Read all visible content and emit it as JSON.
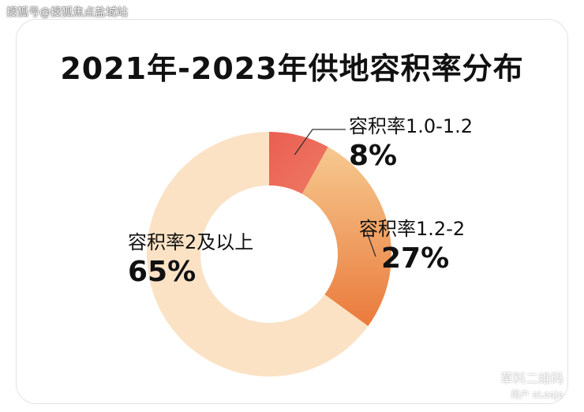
{
  "watermark_top": "搜狐号@搜狐焦点盐城站",
  "watermark_bottom": {
    "line1": "草料二维码",
    "line2": "用户 eLeaje"
  },
  "chart_data": {
    "type": "pie",
    "donut": true,
    "title": "2021年-2023年供地容积率分布",
    "slices": [
      {
        "label": "容积率1.0-1.2",
        "value": 8,
        "value_label": "8%",
        "color": "#e9685a"
      },
      {
        "label": "容积率1.2-2",
        "value": 27,
        "value_label": "27%",
        "color": "#f0a25a"
      },
      {
        "label": "容积率2及以上",
        "value": 65,
        "value_label": "65%",
        "color": "#fbe2c5"
      }
    ]
  }
}
